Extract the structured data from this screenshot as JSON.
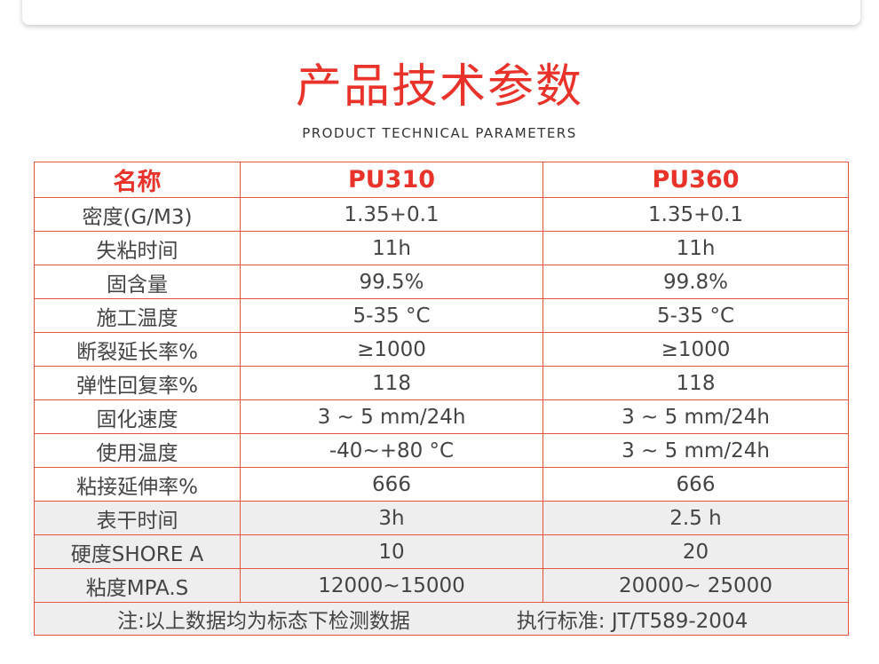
{
  "title": "产品技术参数",
  "subtitle": "PRODUCT TECHNICAL PARAMETERS",
  "colors": {
    "accent": "#e8322a",
    "border": "#e5553e",
    "shade": "#eeeeee"
  },
  "table": {
    "headers": [
      "名称",
      "PU310",
      "PU360"
    ],
    "rows": [
      [
        "密度(G/M3)",
        "1.35+0.1",
        "1.35+0.1"
      ],
      [
        "失粘时间",
        "11h",
        "11h"
      ],
      [
        "固含量",
        "99.5%",
        "99.8%"
      ],
      [
        "施工温度",
        "5-35 °C",
        "5-35 °C"
      ],
      [
        "断裂延长率%",
        "≥1000",
        "≥1000"
      ],
      [
        "弹性回复率%",
        "118",
        "118"
      ],
      [
        "固化速度",
        "3 ~ 5 mm/24h",
        "3 ~ 5 mm/24h"
      ],
      [
        "使用温度",
        "-40~+80 °C",
        "3 ~ 5 mm/24h"
      ],
      [
        "粘接延伸率%",
        "666",
        "666"
      ],
      [
        "表干时间",
        "3h",
        "2.5 h"
      ],
      [
        "硬度SHORE A",
        "10",
        "20"
      ],
      [
        "粘度MPA.S",
        "12000~15000",
        "20000~ 25000"
      ]
    ],
    "footer": {
      "note": "注:以上数据均为标态下检测数据",
      "standard": "执行标准: JT/T589-2004"
    }
  }
}
